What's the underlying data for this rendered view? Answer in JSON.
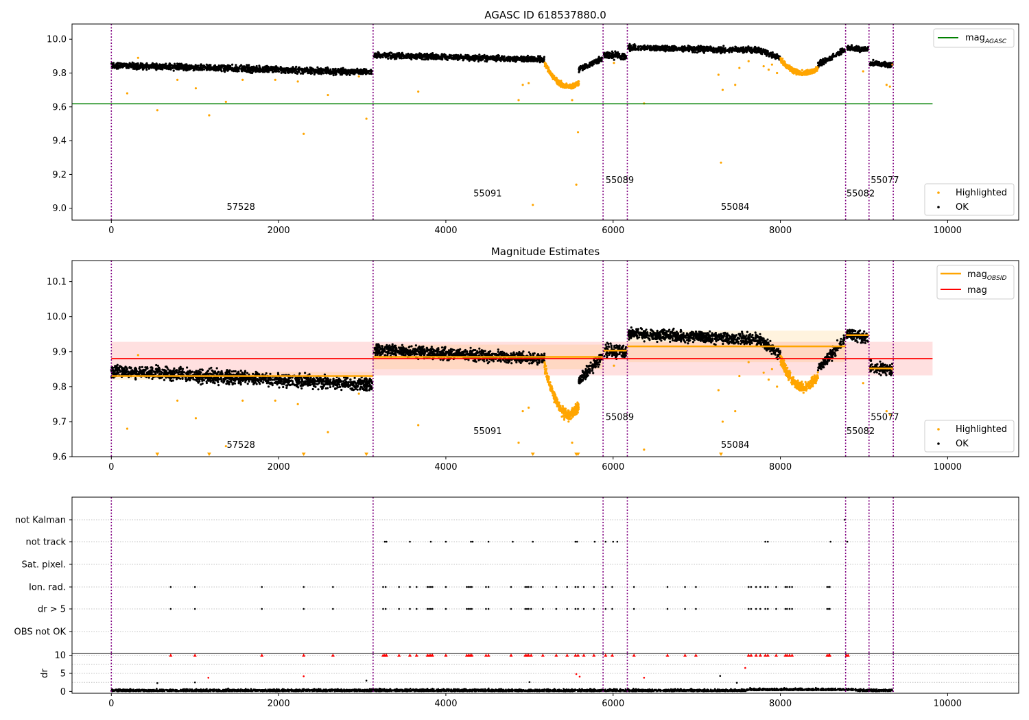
{
  "chart_data": [
    {
      "type": "scatter",
      "title": "AGASC ID 618537880.0",
      "xlim": [
        -470,
        10850
      ],
      "ylim": [
        8.93,
        10.09
      ],
      "xticks": [
        0,
        2000,
        4000,
        6000,
        8000,
        10000
      ],
      "yticks": [
        9.0,
        9.2,
        9.4,
        9.6,
        9.8,
        10.0
      ],
      "legend_line": {
        "label": "mag",
        "subscript": "AGASC",
        "color": "#008000",
        "position": "upper-right"
      },
      "legend_scatter": {
        "position": "lower-right",
        "entries": [
          {
            "label": "Highlighted",
            "color": "#ffa500"
          },
          {
            "label": "OK",
            "color": "#000000"
          }
        ]
      },
      "hline": {
        "name": "mag_AGASC",
        "value": 9.618,
        "xrange": [
          -470,
          9820
        ],
        "color": "#008000"
      },
      "obs_boundaries": [
        0,
        3130,
        5880,
        6170,
        8780,
        9060,
        9350
      ],
      "obsid_labels": [
        {
          "text": "57528",
          "x": 1380,
          "y": 8.99
        },
        {
          "text": "55091",
          "x": 4330,
          "y": 9.07
        },
        {
          "text": "55089",
          "x": 5910,
          "y": 9.15
        },
        {
          "text": "55084",
          "x": 7290,
          "y": 8.99
        },
        {
          "text": "55082",
          "x": 8790,
          "y": 9.07
        },
        {
          "text": "55077",
          "x": 9080,
          "y": 9.15
        }
      ],
      "highlighted_outliers": [
        [
          190,
          9.68
        ],
        [
          320,
          9.89
        ],
        [
          550,
          9.58
        ],
        [
          790,
          9.76
        ],
        [
          1010,
          9.71
        ],
        [
          1170,
          9.55
        ],
        [
          1370,
          9.63
        ],
        [
          1570,
          9.76
        ],
        [
          1960,
          9.76
        ],
        [
          2230,
          9.75
        ],
        [
          2300,
          9.44
        ],
        [
          2590,
          9.67
        ],
        [
          2960,
          9.78
        ],
        [
          3050,
          9.53
        ],
        [
          3670,
          9.69
        ],
        [
          4870,
          9.64
        ],
        [
          4920,
          9.73
        ],
        [
          4990,
          9.74
        ],
        [
          5040,
          9.02
        ],
        [
          5510,
          9.64
        ],
        [
          5560,
          9.14
        ],
        [
          5580,
          9.45
        ],
        [
          6010,
          9.86
        ],
        [
          6370,
          9.62
        ],
        [
          7260,
          9.79
        ],
        [
          7290,
          9.27
        ],
        [
          7310,
          9.7
        ],
        [
          7460,
          9.73
        ],
        [
          7510,
          9.83
        ],
        [
          7620,
          9.87
        ],
        [
          7800,
          9.84
        ],
        [
          7860,
          9.82
        ],
        [
          7900,
          9.85
        ],
        [
          7960,
          9.8
        ],
        [
          8990,
          9.81
        ],
        [
          9270,
          9.73
        ],
        [
          9310,
          9.72
        ],
        [
          9340,
          9.85
        ]
      ],
      "ok_segments": [
        {
          "x0": 0,
          "x1": 3120,
          "y0": 9.845,
          "y1": 9.805,
          "spread": 0.018
        },
        {
          "x0": 3140,
          "x1": 5180,
          "y0": 9.905,
          "y1": 9.88,
          "spread": 0.016
        },
        {
          "x0": 5590,
          "x1": 5870,
          "y0": 9.82,
          "y1": 9.885,
          "spread": 0.016
        },
        {
          "x0": 5890,
          "x1": 6160,
          "y0": 9.905,
          "y1": 9.9,
          "spread": 0.02
        },
        {
          "x0": 6180,
          "x1": 7760,
          "y0": 9.95,
          "y1": 9.935,
          "spread": 0.016
        },
        {
          "x0": 7760,
          "x1": 8000,
          "y0": 9.93,
          "y1": 9.89,
          "spread": 0.016
        },
        {
          "x0": 8450,
          "x1": 8770,
          "y0": 9.85,
          "y1": 9.935,
          "spread": 0.016
        },
        {
          "x0": 8790,
          "x1": 9050,
          "y0": 9.95,
          "y1": 9.94,
          "spread": 0.016
        },
        {
          "x0": 9070,
          "x1": 9340,
          "y0": 9.855,
          "y1": 9.85,
          "spread": 0.016
        }
      ],
      "highlighted_dips": [
        {
          "x0": 5180,
          "x1": 5590,
          "center": 5470,
          "base": 9.86,
          "depth": 0.14
        },
        {
          "x0": 8000,
          "x1": 8450,
          "center": 8280,
          "base": 9.88,
          "depth": 0.08
        }
      ]
    },
    {
      "type": "scatter",
      "title": "Magnitude Estimates",
      "xlim": [
        -470,
        10850
      ],
      "ylim": [
        9.6,
        10.16
      ],
      "xticks": [
        0,
        2000,
        4000,
        6000,
        8000,
        10000
      ],
      "yticks": [
        9.6,
        9.7,
        9.8,
        9.9,
        10.0,
        10.1
      ],
      "legend_lines": {
        "position": "upper-right",
        "entries": [
          {
            "label": "mag",
            "subscript": "OBSID",
            "color": "#ffa500"
          },
          {
            "label": "mag",
            "subscript": "",
            "color": "#ff0000"
          }
        ]
      },
      "legend_scatter": {
        "position": "lower-right",
        "entries": [
          {
            "label": "Highlighted",
            "color": "#ffa500"
          },
          {
            "label": "OK",
            "color": "#000000"
          }
        ]
      },
      "mag_line": {
        "value": 9.88,
        "band": [
          9.832,
          9.928
        ],
        "xrange": [
          0,
          9820
        ],
        "color": "#ff0000"
      },
      "mag_obsid": [
        {
          "x0": 0,
          "x1": 3130,
          "value": 9.83,
          "band": [
            9.82,
            9.842
          ]
        },
        {
          "x0": 3130,
          "x1": 5880,
          "value": 9.885,
          "band": [
            9.85,
            9.92
          ]
        },
        {
          "x0": 5880,
          "x1": 6170,
          "value": 9.903,
          "band": [
            9.89,
            9.915
          ]
        },
        {
          "x0": 6170,
          "x1": 8780,
          "value": 9.915,
          "band": [
            9.87,
            9.96
          ]
        },
        {
          "x0": 8780,
          "x1": 9060,
          "value": 9.947,
          "band": [
            9.94,
            9.955
          ]
        },
        {
          "x0": 9060,
          "x1": 9350,
          "value": 9.852,
          "band": [
            9.845,
            9.86
          ]
        }
      ],
      "obs_boundaries": [
        0,
        3130,
        5880,
        6170,
        8780,
        9060,
        9350
      ],
      "obsid_labels": [
        {
          "text": "57528",
          "x": 1380,
          "y": 9.625
        },
        {
          "text": "55091",
          "x": 4330,
          "y": 9.665
        },
        {
          "text": "55089",
          "x": 5910,
          "y": 9.705
        },
        {
          "text": "55084",
          "x": 7290,
          "y": 9.625
        },
        {
          "text": "55082",
          "x": 8790,
          "y": 9.665
        },
        {
          "text": "55077",
          "x": 9080,
          "y": 9.705
        }
      ],
      "highlighted_outliers": [
        [
          190,
          9.68
        ],
        [
          320,
          9.89
        ],
        [
          790,
          9.76
        ],
        [
          1010,
          9.71
        ],
        [
          1370,
          9.63
        ],
        [
          1570,
          9.76
        ],
        [
          1960,
          9.76
        ],
        [
          2230,
          9.75
        ],
        [
          2590,
          9.67
        ],
        [
          2960,
          9.78
        ],
        [
          3670,
          9.69
        ],
        [
          4870,
          9.64
        ],
        [
          4920,
          9.73
        ],
        [
          4990,
          9.74
        ],
        [
          5510,
          9.64
        ],
        [
          6010,
          9.86
        ],
        [
          6370,
          9.62
        ],
        [
          7260,
          9.79
        ],
        [
          7310,
          9.7
        ],
        [
          7460,
          9.73
        ],
        [
          7510,
          9.83
        ],
        [
          7620,
          9.87
        ],
        [
          7800,
          9.84
        ],
        [
          7860,
          9.82
        ],
        [
          7900,
          9.85
        ],
        [
          7960,
          9.8
        ],
        [
          8990,
          9.81
        ],
        [
          9270,
          9.73
        ],
        [
          9310,
          9.72
        ],
        [
          9340,
          9.85
        ]
      ],
      "clipped_markers_x": [
        550,
        1170,
        2300,
        3050,
        5040,
        5560,
        5580,
        7290
      ],
      "ok_segments": [
        {
          "x0": 0,
          "x1": 3120,
          "y0": 9.845,
          "y1": 9.805,
          "spread": 0.018
        },
        {
          "x0": 3140,
          "x1": 5180,
          "y0": 9.905,
          "y1": 9.88,
          "spread": 0.016
        },
        {
          "x0": 5590,
          "x1": 5870,
          "y0": 9.82,
          "y1": 9.885,
          "spread": 0.016
        },
        {
          "x0": 5890,
          "x1": 6160,
          "y0": 9.905,
          "y1": 9.9,
          "spread": 0.02
        },
        {
          "x0": 6180,
          "x1": 7760,
          "y0": 9.95,
          "y1": 9.935,
          "spread": 0.016
        },
        {
          "x0": 7760,
          "x1": 8000,
          "y0": 9.93,
          "y1": 9.89,
          "spread": 0.016
        },
        {
          "x0": 8450,
          "x1": 8770,
          "y0": 9.85,
          "y1": 9.935,
          "spread": 0.016
        },
        {
          "x0": 8790,
          "x1": 9050,
          "y0": 9.95,
          "y1": 9.94,
          "spread": 0.016
        },
        {
          "x0": 9070,
          "x1": 9340,
          "y0": 9.855,
          "y1": 9.85,
          "spread": 0.016
        }
      ],
      "highlighted_dips": [
        {
          "x0": 5180,
          "x1": 5590,
          "center": 5470,
          "base": 9.86,
          "depth": 0.14
        },
        {
          "x0": 8000,
          "x1": 8450,
          "center": 8280,
          "base": 9.88,
          "depth": 0.08
        }
      ]
    },
    {
      "type": "scatter",
      "title": "",
      "xlim": [
        -470,
        10850
      ],
      "xticks": [
        0,
        2000,
        4000,
        6000,
        8000,
        10000
      ],
      "flag_rows": [
        "not Kalman",
        "not track",
        "Sat. pixel.",
        "Ion. rad.",
        "dr > 5",
        "OBS not OK"
      ],
      "flag_points": {
        "not Kalman": [
          8770
        ],
        "not track": [
          3270,
          3290,
          3570,
          3820,
          4000,
          4300,
          4320,
          4510,
          4800,
          5040,
          5550,
          5570,
          5780,
          5910,
          6000,
          6050,
          7820,
          7850,
          8600,
          8800
        ],
        "Sat. pixel.": [],
        "Ion. rad.": [
          710,
          1000,
          1800,
          2300,
          2650,
          3250,
          3280,
          3440,
          3570,
          3650,
          3780,
          3800,
          3820,
          3840,
          4000,
          4250,
          4270,
          4290,
          4310,
          4480,
          4510,
          4780,
          4950,
          4970,
          4990,
          5020,
          5160,
          5320,
          5450,
          5550,
          5580,
          5650,
          5770,
          5910,
          5990,
          6250,
          6650,
          6860,
          6990,
          7620,
          7650,
          7710,
          7760,
          7820,
          7850,
          7950,
          8060,
          8080,
          8110,
          8140,
          8560,
          8580,
          8590
        ],
        "dr > 5": [
          710,
          1000,
          1800,
          2300,
          2650,
          3250,
          3280,
          3440,
          3570,
          3650,
          3780,
          3800,
          3820,
          3840,
          4000,
          4250,
          4270,
          4290,
          4310,
          4480,
          4510,
          4780,
          4950,
          4970,
          4990,
          5020,
          5160,
          5320,
          5450,
          5550,
          5580,
          5650,
          5770,
          5910,
          5990,
          6250,
          6650,
          6860,
          6990,
          7620,
          7650,
          7710,
          7760,
          7820,
          7850,
          7950,
          8060,
          8080,
          8110,
          8140,
          8560,
          8580,
          8590
        ],
        "OBS not OK": []
      },
      "obs_boundaries": [
        0,
        3130,
        5880,
        6170,
        8780,
        9060,
        9350
      ]
    },
    {
      "type": "scatter",
      "title": "",
      "ylabel": "dr",
      "xlim": [
        -470,
        10850
      ],
      "ylim": [
        -0.5,
        10.5
      ],
      "xticks": [
        0,
        2000,
        4000,
        6000,
        8000,
        10000
      ],
      "yticks": [
        0,
        5,
        10
      ],
      "dr_clipped_red_x": [
        710,
        1000,
        1800,
        2300,
        2650,
        3250,
        3270,
        3290,
        3440,
        3570,
        3650,
        3780,
        3800,
        3820,
        3840,
        4000,
        4250,
        4270,
        4290,
        4310,
        4480,
        4510,
        4780,
        4950,
        4970,
        4990,
        5020,
        5160,
        5320,
        5450,
        5550,
        5580,
        5650,
        5770,
        5910,
        5990,
        6250,
        6650,
        6860,
        6990,
        7620,
        7650,
        7710,
        7760,
        7820,
        7850,
        7950,
        8060,
        8080,
        8110,
        8140,
        8560,
        8580,
        8590,
        8790,
        8810
      ],
      "dr_red_mid": [
        [
          1160,
          3.8
        ],
        [
          2300,
          4.2
        ],
        [
          5560,
          4.8
        ],
        [
          5600,
          4.1
        ],
        [
          6370,
          3.8
        ],
        [
          7580,
          6.5
        ]
      ],
      "dr_black_mid": [
        [
          550,
          2.3
        ],
        [
          1000,
          2.5
        ],
        [
          3050,
          3.0
        ],
        [
          5000,
          2.6
        ],
        [
          7280,
          4.3
        ],
        [
          7480,
          2.4
        ]
      ],
      "obs_boundaries": [
        0,
        3130,
        5880,
        6170,
        8780,
        9060,
        9350
      ]
    }
  ]
}
